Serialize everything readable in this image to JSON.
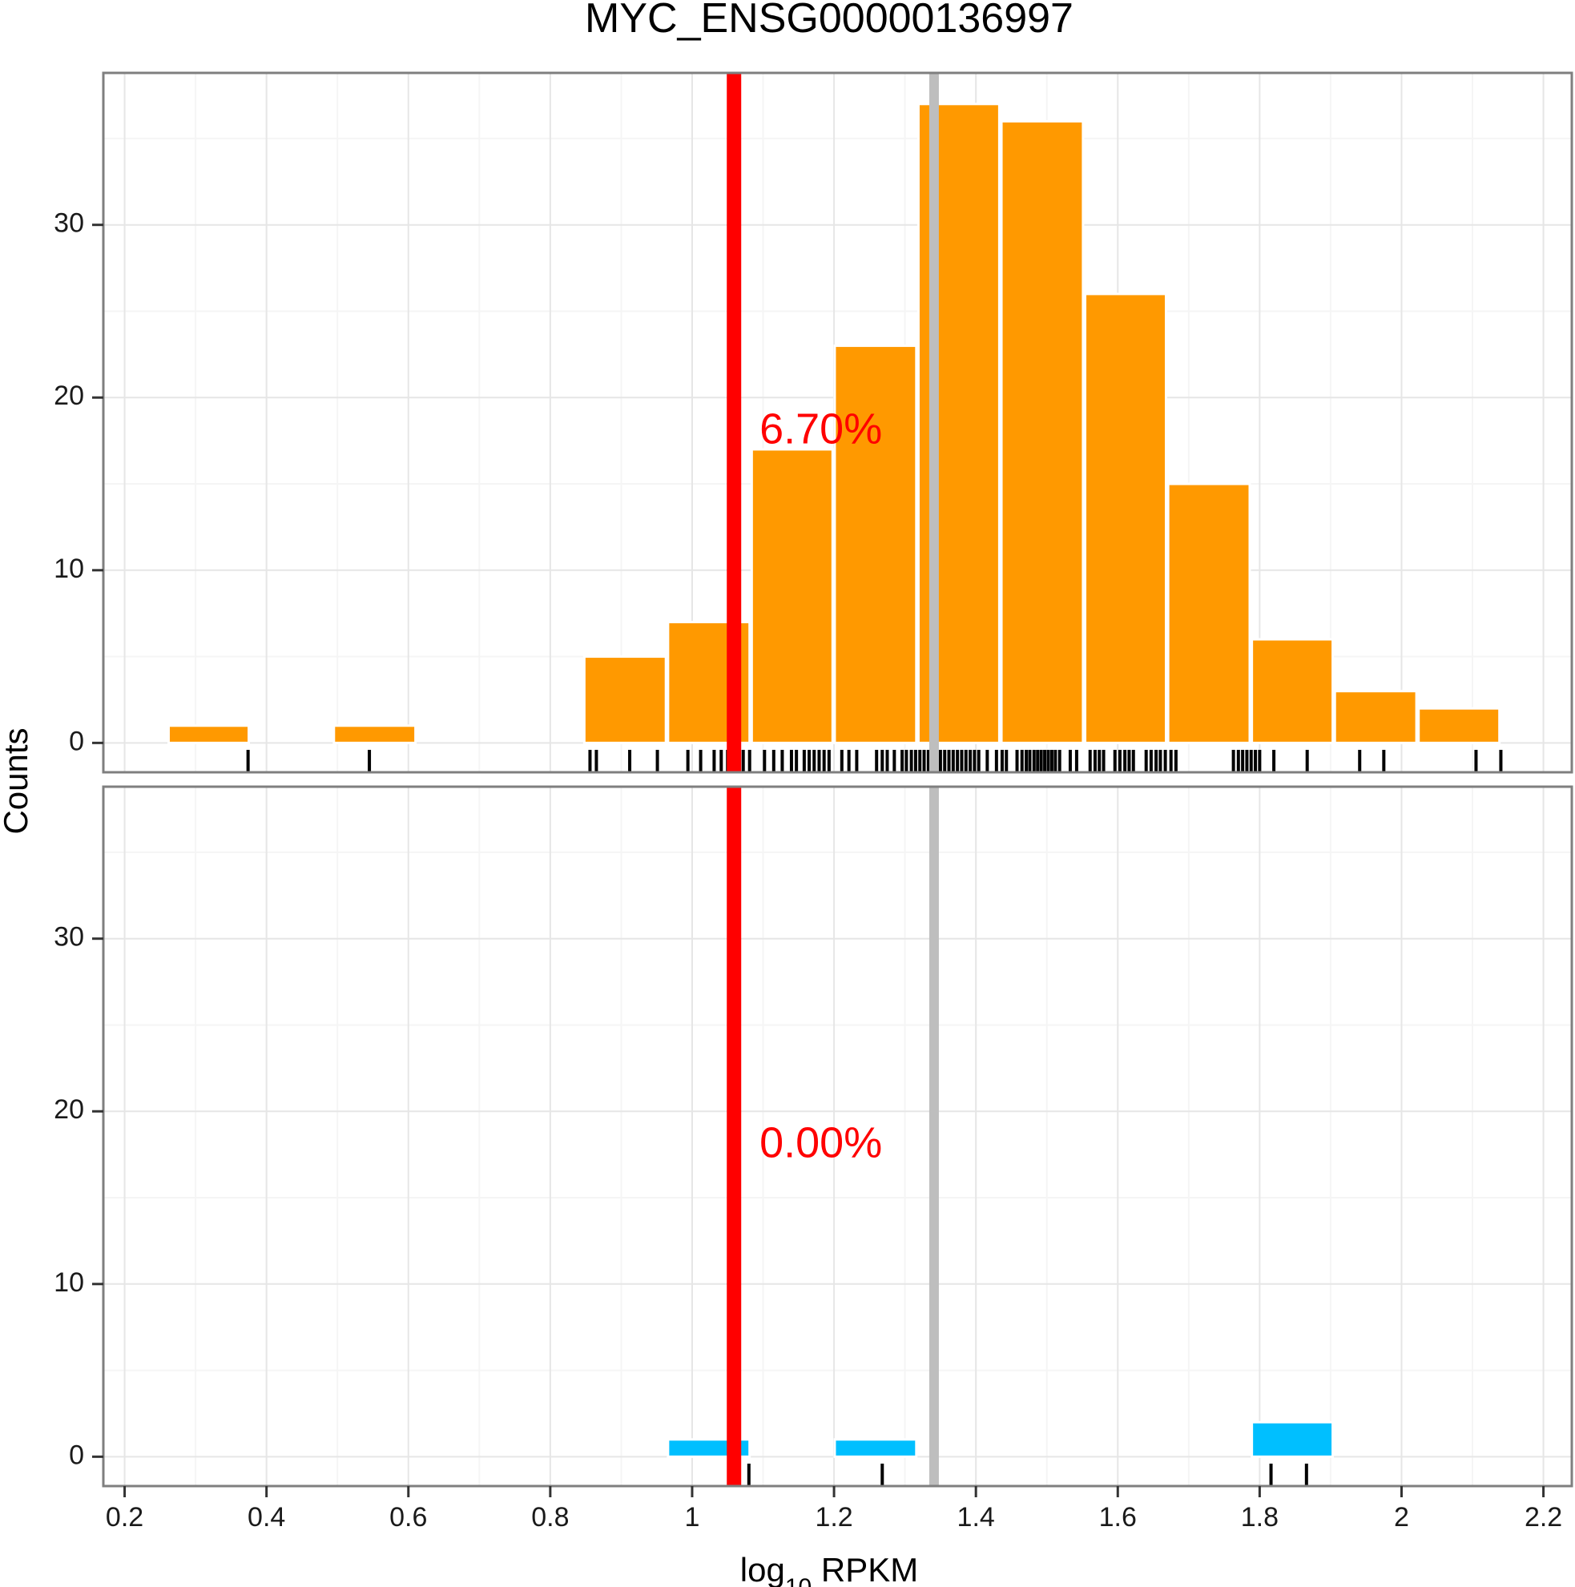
{
  "chart_data": {
    "type": "histogram",
    "title": "MYC_ENSG00000136997",
    "xlabel": {
      "prefix": "log",
      "subscript": "10",
      "suffix": " RPKM"
    },
    "ylabel": "Counts",
    "xlim": [
      0.17,
      2.24
    ],
    "ylim": [
      -1.7,
      38.8
    ],
    "x_ticks": [
      0.2,
      0.4,
      0.6,
      0.8,
      1,
      1.2,
      1.4,
      1.6,
      1.8,
      2,
      2.2
    ],
    "x_tick_labels": [
      "0.2",
      "0.4",
      "0.6",
      "0.8",
      "1",
      "1.2",
      "1.4",
      "1.6",
      "1.8",
      "2",
      "2.2"
    ],
    "y_ticks": [
      0,
      10,
      20,
      30
    ],
    "y_tick_labels": [
      "0",
      "10",
      "20",
      "30"
    ],
    "grid": true,
    "reference_lines": {
      "red": {
        "x": 1.059,
        "color": "#ff0000"
      },
      "gray": {
        "x": 1.341,
        "color": "#bebebe"
      }
    },
    "panels": [
      {
        "id": "top",
        "bar_color": "#ff9900",
        "percent_label": "6.70%",
        "label_x": 1.095,
        "label_y": 18,
        "bars": [
          {
            "x0": 0.262,
            "x1": 0.375,
            "count": 1
          },
          {
            "x0": 0.495,
            "x1": 0.61,
            "count": 1
          },
          {
            "x0": 0.848,
            "x1": 0.963,
            "count": 5
          },
          {
            "x0": 0.966,
            "x1": 1.081,
            "count": 7
          },
          {
            "x0": 1.084,
            "x1": 1.198,
            "count": 17
          },
          {
            "x0": 1.201,
            "x1": 1.316,
            "count": 23
          },
          {
            "x0": 1.319,
            "x1": 1.433,
            "count": 37
          },
          {
            "x0": 1.436,
            "x1": 1.551,
            "count": 36
          },
          {
            "x0": 1.554,
            "x1": 1.668,
            "count": 26
          },
          {
            "x0": 1.671,
            "x1": 1.786,
            "count": 15
          },
          {
            "x0": 1.789,
            "x1": 1.903,
            "count": 6
          },
          {
            "x0": 1.906,
            "x1": 2.021,
            "count": 3
          },
          {
            "x0": 2.024,
            "x1": 2.138,
            "count": 2
          }
        ],
        "rug": [
          0.374,
          0.545,
          0.856,
          0.865,
          0.912,
          0.951,
          0.994,
          1.012,
          1.031,
          1.041,
          1.05,
          1.061,
          1.072,
          1.081,
          1.102,
          1.115,
          1.127,
          1.14,
          1.147,
          1.158,
          1.165,
          1.172,
          1.179,
          1.186,
          1.193,
          1.211,
          1.221,
          1.232,
          1.26,
          1.268,
          1.275,
          1.285,
          1.296,
          1.302,
          1.309,
          1.315,
          1.321,
          1.327,
          1.333,
          1.338,
          1.344,
          1.35,
          1.356,
          1.362,
          1.368,
          1.374,
          1.38,
          1.386,
          1.392,
          1.398,
          1.404,
          1.416,
          1.429,
          1.437,
          1.443,
          1.458,
          1.465,
          1.471,
          1.476,
          1.482,
          1.487,
          1.492,
          1.497,
          1.502,
          1.507,
          1.512,
          1.518,
          1.533,
          1.542,
          1.561,
          1.568,
          1.574,
          1.58,
          1.596,
          1.603,
          1.61,
          1.616,
          1.622,
          1.64,
          1.647,
          1.654,
          1.66,
          1.667,
          1.675,
          1.682,
          1.763,
          1.77,
          1.776,
          1.782,
          1.788,
          1.794,
          1.8,
          1.82,
          1.867,
          1.941,
          1.975,
          2.105,
          2.14
        ]
      },
      {
        "id": "bottom",
        "bar_color": "#00bfff",
        "percent_label": "0.00%",
        "label_x": 1.095,
        "label_y": 18,
        "bars": [
          {
            "x0": 0.966,
            "x1": 1.081,
            "count": 1
          },
          {
            "x0": 1.201,
            "x1": 1.316,
            "count": 1
          },
          {
            "x0": 1.789,
            "x1": 1.903,
            "count": 2
          }
        ],
        "rug": [
          1.08,
          1.268,
          1.816,
          1.866
        ]
      }
    ]
  }
}
